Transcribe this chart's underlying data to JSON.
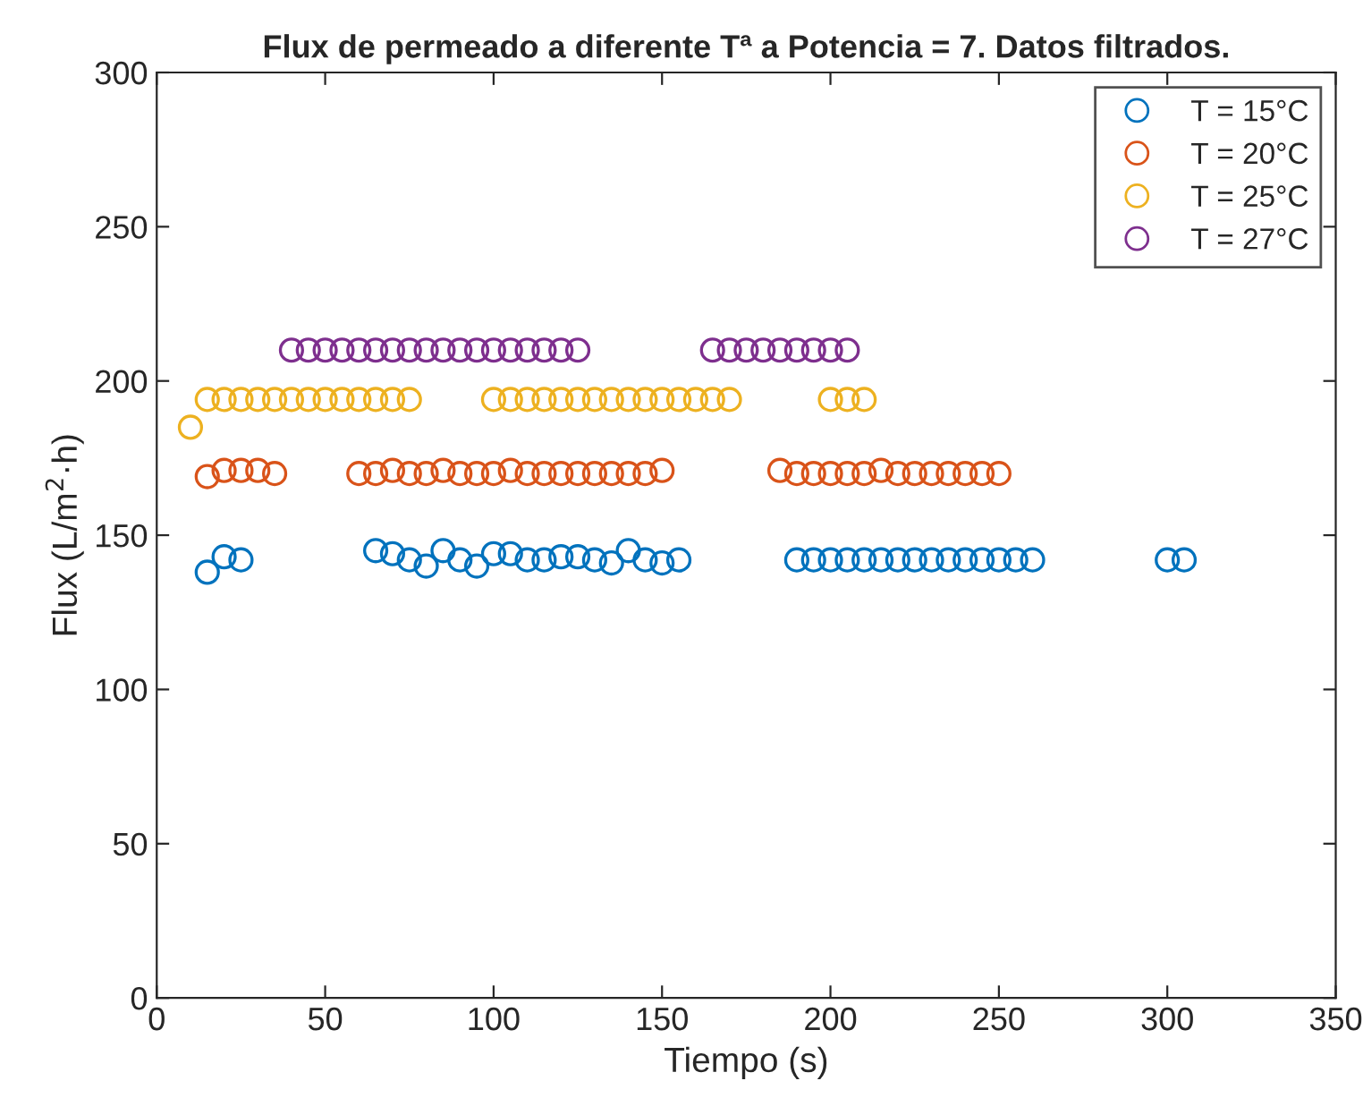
{
  "chart_data": {
    "type": "scatter",
    "title": "Flux de permeado a diferente Tª a Potencia = 7. Datos filtrados.",
    "xlabel": "Tiempo (s)",
    "ylabel": "Flux (L/m$^{2}$·h)",
    "xlim": [
      0,
      350
    ],
    "ylim": [
      0,
      300
    ],
    "xticks": [
      0,
      50,
      100,
      150,
      200,
      250,
      300,
      350
    ],
    "yticks": [
      0,
      50,
      100,
      150,
      200,
      250,
      300
    ],
    "grid": false,
    "legend": "top right",
    "marker": "circle",
    "series": [
      {
        "name": "T = 15°C",
        "color": "#0072bd",
        "x": [
          15,
          20,
          25,
          65,
          70,
          75,
          80,
          85,
          90,
          95,
          100,
          105,
          110,
          115,
          120,
          125,
          130,
          135,
          140,
          145,
          150,
          155,
          190,
          195,
          200,
          205,
          210,
          215,
          220,
          225,
          230,
          235,
          240,
          245,
          250,
          255,
          260,
          300,
          305
        ],
        "values": [
          138,
          143,
          142,
          145,
          144,
          142,
          140,
          145,
          142,
          140,
          144,
          144,
          142,
          142,
          143,
          143,
          142,
          141,
          145,
          142,
          141,
          142,
          142,
          142,
          142,
          142,
          142,
          142,
          142,
          142,
          142,
          142,
          142,
          142,
          142,
          142,
          142,
          142,
          142
        ]
      },
      {
        "name": "T = 20°C",
        "color": "#d95319",
        "x": [
          15,
          20,
          25,
          30,
          35,
          60,
          65,
          70,
          75,
          80,
          85,
          90,
          95,
          100,
          105,
          110,
          115,
          120,
          125,
          130,
          135,
          140,
          145,
          150,
          185,
          190,
          195,
          200,
          205,
          210,
          215,
          220,
          225,
          230,
          235,
          240,
          245,
          250
        ],
        "values": [
          169,
          171,
          171,
          171,
          170,
          170,
          170,
          171,
          170,
          170,
          171,
          170,
          170,
          170,
          171,
          170,
          170,
          170,
          170,
          170,
          170,
          170,
          170,
          171,
          171,
          170,
          170,
          170,
          170,
          170,
          171,
          170,
          170,
          170,
          170,
          170,
          170,
          170
        ]
      },
      {
        "name": "T = 25°C",
        "color": "#edb120",
        "x": [
          10,
          15,
          20,
          25,
          30,
          35,
          40,
          45,
          50,
          55,
          60,
          65,
          70,
          75,
          100,
          105,
          110,
          115,
          120,
          125,
          130,
          135,
          140,
          145,
          150,
          155,
          160,
          165,
          170,
          200,
          205,
          210
        ],
        "values": [
          185,
          194,
          194,
          194,
          194,
          194,
          194,
          194,
          194,
          194,
          194,
          194,
          194,
          194,
          194,
          194,
          194,
          194,
          194,
          194,
          194,
          194,
          194,
          194,
          194,
          194,
          194,
          194,
          194,
          194,
          194,
          194
        ]
      },
      {
        "name": "T = 27°C",
        "color": "#7e2f8e",
        "x": [
          40,
          45,
          50,
          55,
          60,
          65,
          70,
          75,
          80,
          85,
          90,
          95,
          100,
          105,
          110,
          115,
          120,
          125,
          165,
          170,
          175,
          180,
          185,
          190,
          195,
          200,
          205
        ],
        "values": [
          210,
          210,
          210,
          210,
          210,
          210,
          210,
          210,
          210,
          210,
          210,
          210,
          210,
          210,
          210,
          210,
          210,
          210,
          210,
          210,
          210,
          210,
          210,
          210,
          210,
          210,
          210
        ]
      }
    ]
  }
}
